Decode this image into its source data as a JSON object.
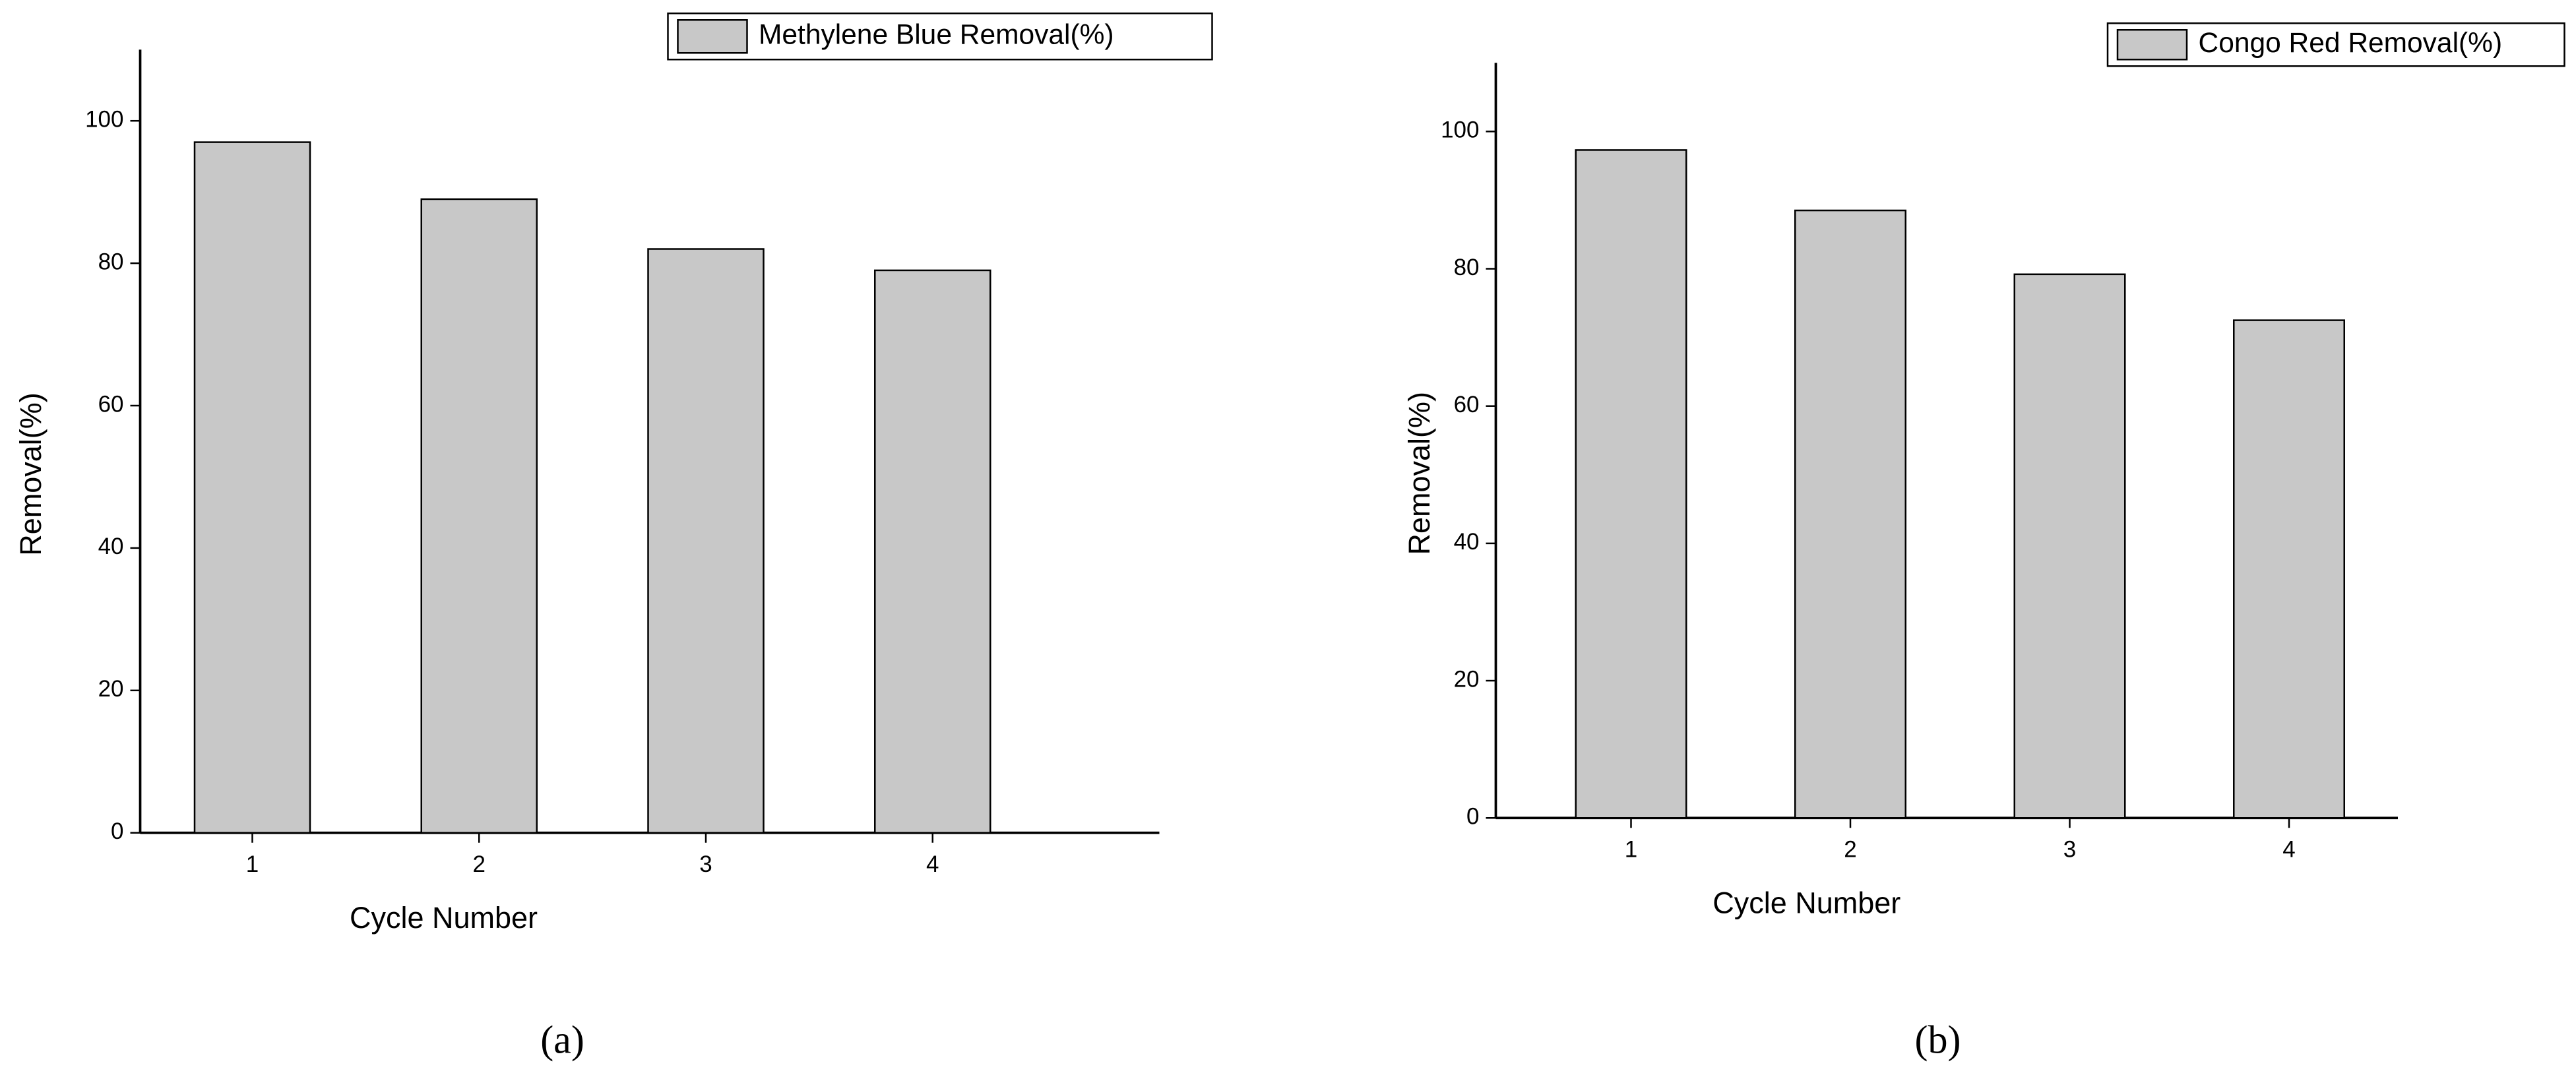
{
  "chart_data": [
    {
      "type": "bar",
      "caption": "(a)",
      "xlabel": "Cycle Number",
      "ylabel": "Removal(%)",
      "categories": [
        "1",
        "2",
        "3",
        "4"
      ],
      "series": [
        {
          "name": "Methylene Blue Removal(%)",
          "color": "#c8c8c8",
          "values": [
            97,
            89,
            82,
            79
          ]
        }
      ],
      "ylim": [
        0,
        110
      ],
      "yticks": [
        0,
        20,
        40,
        60,
        80,
        100
      ]
    },
    {
      "type": "bar",
      "caption": "(b)",
      "xlabel": "Cycle Number",
      "ylabel": "Removal(%)",
      "categories": [
        "1",
        "2",
        "3",
        "4"
      ],
      "series": [
        {
          "name": "Congo Red Removal(%)",
          "color": "#c8c8c8",
          "values": [
            97.3,
            88.5,
            79.2,
            72.5
          ]
        }
      ],
      "ylim": [
        0,
        110
      ],
      "yticks": [
        0,
        20,
        40,
        60,
        80,
        100
      ]
    }
  ]
}
